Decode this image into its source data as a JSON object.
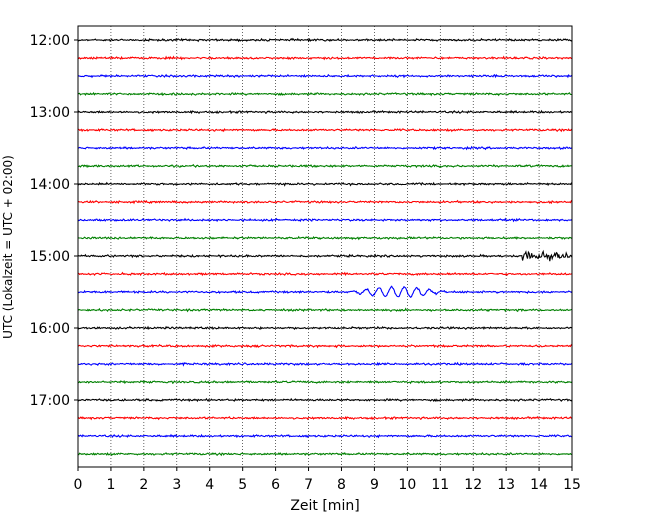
{
  "chart_data": {
    "type": "line",
    "title": "",
    "xlabel": "Zeit  [min]",
    "ylabel": "UTC (Lokalzeit = UTC + 02:00)",
    "xlim": [
      0,
      15
    ],
    "x_ticks": [
      "0",
      "1",
      "2",
      "3",
      "4",
      "5",
      "6",
      "7",
      "8",
      "9",
      "10",
      "11",
      "12",
      "13",
      "14",
      "15"
    ],
    "y_ticks": [
      "12:00",
      "13:00",
      "14:00",
      "15:00",
      "16:00",
      "17:00"
    ],
    "grid": "vertical dotted",
    "trace_interval_min": 15,
    "trace_start": "12:00",
    "trace_count": 24,
    "colors": [
      "#000000",
      "#ff0000",
      "#0000ff",
      "#008000"
    ],
    "events": [
      {
        "trace": "15:00",
        "start_min": 13.5,
        "end_min": 15,
        "kind": "burst",
        "color": "#000000"
      },
      {
        "trace": "15:30",
        "start_min": 8.2,
        "end_min": 11.2,
        "kind": "wave",
        "color": "#0000ff"
      }
    ]
  }
}
